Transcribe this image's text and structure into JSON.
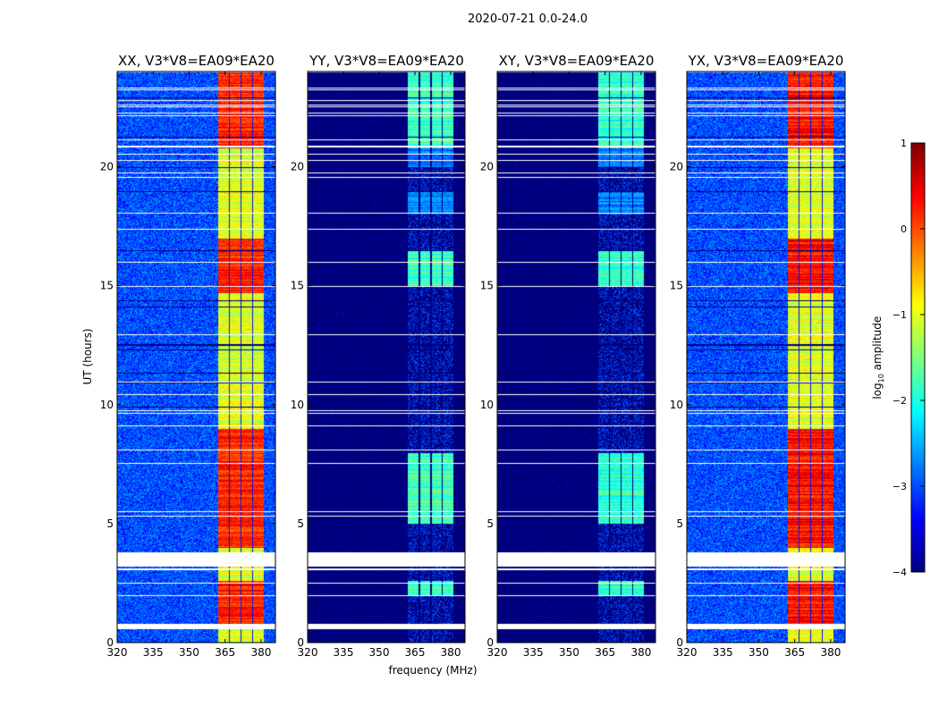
{
  "chart_data": {
    "type": "heatmap",
    "title": "2020-07-21 0.0-24.0",
    "xlabel": "frequency (MHz)",
    "ylabel": "UT (hours)",
    "xlim": [
      320,
      386
    ],
    "ylim": [
      0,
      24
    ],
    "xticks": [
      "320",
      "335",
      "350",
      "365",
      "380"
    ],
    "xtick_values": [
      320,
      335,
      350,
      365,
      380
    ],
    "yticks": [
      "0",
      "5",
      "10",
      "15",
      "20"
    ],
    "ytick_values": [
      0,
      5,
      10,
      15,
      20
    ],
    "colormap": "jet",
    "colorbar": {
      "label_main": "log",
      "label_sub": "10",
      "label_rest": " amplitude",
      "range": [
        -4,
        1
      ],
      "ticks": [
        "1",
        "0",
        "−1",
        "−2",
        "−3",
        "−4"
      ],
      "tick_values": [
        1,
        0,
        -1,
        -2,
        -3,
        -4
      ]
    },
    "rfi_band_mhz": [
      362,
      381
    ],
    "flagged_hours": [
      [
        0.6,
        0.8
      ],
      [
        3.2,
        3.8
      ]
    ],
    "panels": [
      {
        "title": "XX, V3*V8=EA09*EA20",
        "background_log_amp": -3.0,
        "rfi_log_amp": -1.0,
        "bright_log_amp": 0.2
      },
      {
        "title": "YY, V3*V8=EA09*EA20",
        "background_log_amp": -4.0,
        "rfi_log_amp": -2.8,
        "bright_log_amp": -1.8
      },
      {
        "title": "XY, V3*V8=EA09*EA20",
        "background_log_amp": -4.0,
        "rfi_log_amp": -2.8,
        "bright_log_amp": -1.9
      },
      {
        "title": "YX, V3*V8=EA09*EA20",
        "background_log_amp": -3.0,
        "rfi_log_amp": -1.0,
        "bright_log_amp": 0.3
      }
    ]
  }
}
